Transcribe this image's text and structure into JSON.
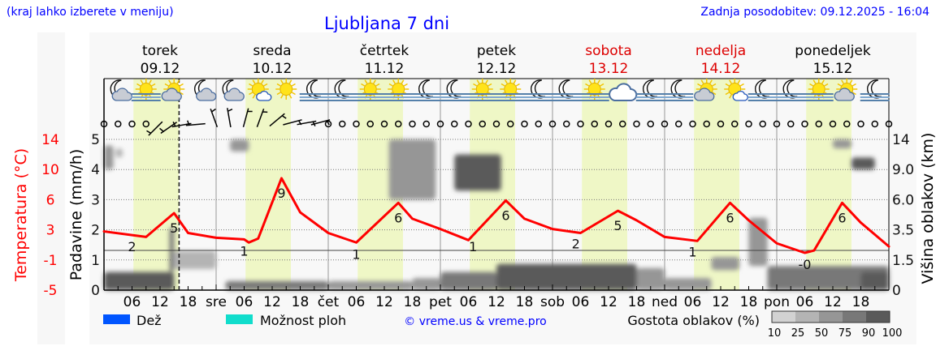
{
  "header": {
    "hint": "(kraj lahko izberete v meniju)",
    "title": "Ljubljana 7 dni",
    "updated": "Zadnja posodobitev: 09.12.2025 - 16:04"
  },
  "days": [
    {
      "name": "torek",
      "date": "09.12",
      "abbr": "",
      "weekend": false
    },
    {
      "name": "sreda",
      "date": "10.12",
      "abbr": "sre",
      "weekend": false
    },
    {
      "name": "četrtek",
      "date": "11.12",
      "abbr": "čet",
      "weekend": false
    },
    {
      "name": "petek",
      "date": "12.12",
      "abbr": "pet",
      "weekend": false
    },
    {
      "name": "sobota",
      "date": "13.12",
      "abbr": "sob",
      "weekend": true
    },
    {
      "name": "nedelja",
      "date": "14.12",
      "abbr": "ned",
      "weekend": true
    },
    {
      "name": "ponedeljek",
      "date": "15.12",
      "abbr": "pon",
      "weekend": false
    }
  ],
  "legend": {
    "rain": "Dež",
    "showers": "Možnost ploh",
    "copyright": "© vreme.us & vreme.pro",
    "cloud_density": "Gostota oblakov (%)",
    "density_levels": [
      "10",
      "25",
      "50",
      "75",
      "90",
      "100"
    ]
  },
  "colors": {
    "temperature": "#ff0000",
    "rain": "#0055ff",
    "showers": "#11ddcc",
    "daylight": "#eff7c6",
    "title": "#0000ff",
    "weekend": "#dd0000",
    "density": [
      "#d2d2d2",
      "#b4b4b4",
      "#969696",
      "#787878",
      "#5a5a5a"
    ]
  },
  "chart_data": {
    "type": "meteogram",
    "x_unit": "hours from 09.12 00:00",
    "hour_tick_labels": [
      "06",
      "12",
      "18"
    ],
    "current_time_hour": 16.07,
    "daylight_hours": [
      6.3,
      16.0
    ],
    "axes": {
      "precip": {
        "label": "Padavine (mm/h)",
        "ticks": [
          "0",
          "1",
          "2",
          "3",
          "4",
          "5"
        ],
        "range": [
          0,
          5
        ]
      },
      "temperature": {
        "label": "Temperatura (°C)",
        "ticks": [
          "14",
          "10",
          "6",
          "3",
          "-1",
          "-5"
        ],
        "range": [
          -5,
          14
        ]
      },
      "cloud_height": {
        "label": "Višina oblakov (km)",
        "ticks": [
          "0",
          "1.5",
          "3.5",
          "6.0",
          "9.0",
          "14"
        ]
      }
    },
    "temperature": [
      [
        0,
        2.4
      ],
      [
        9,
        1.7
      ],
      [
        15,
        4.7
      ],
      [
        18,
        2.2
      ],
      [
        24,
        1.6
      ],
      [
        30,
        1.4
      ],
      [
        31,
        1.0
      ],
      [
        33,
        1.5
      ],
      [
        38,
        9.1
      ],
      [
        42,
        4.8
      ],
      [
        48,
        2.2
      ],
      [
        54,
        1.0
      ],
      [
        63,
        6.0
      ],
      [
        66,
        4.0
      ],
      [
        72,
        2.7
      ],
      [
        78,
        1.3
      ],
      [
        86,
        6.3
      ],
      [
        90,
        4.0
      ],
      [
        96,
        2.7
      ],
      [
        102,
        2.2
      ],
      [
        110,
        5.0
      ],
      [
        114,
        3.8
      ],
      [
        120,
        1.7
      ],
      [
        127,
        1.2
      ],
      [
        134,
        6.0
      ],
      [
        138,
        3.8
      ],
      [
        144,
        0.9
      ],
      [
        150,
        -0.3
      ],
      [
        152,
        0.0
      ],
      [
        158,
        6.0
      ],
      [
        162,
        3.5
      ],
      [
        168,
        0.5
      ]
    ],
    "temp_labels": [
      {
        "hour": 6,
        "text": "2",
        "kind": "min"
      },
      {
        "hour": 15,
        "text": "5",
        "kind": "max"
      },
      {
        "hour": 30,
        "text": "1",
        "kind": "min"
      },
      {
        "hour": 38,
        "text": "9",
        "kind": "max"
      },
      {
        "hour": 54,
        "text": "1",
        "kind": "min"
      },
      {
        "hour": 63,
        "text": "6",
        "kind": "max"
      },
      {
        "hour": 79,
        "text": "1",
        "kind": "min"
      },
      {
        "hour": 86,
        "text": "6",
        "kind": "max"
      },
      {
        "hour": 101,
        "text": "2",
        "kind": "min"
      },
      {
        "hour": 110,
        "text": "5",
        "kind": "max"
      },
      {
        "hour": 126,
        "text": "1",
        "kind": "min"
      },
      {
        "hour": 134,
        "text": "6",
        "kind": "max"
      },
      {
        "hour": 150,
        "text": "-0",
        "kind": "min"
      },
      {
        "hour": 158,
        "text": "6",
        "kind": "max"
      }
    ],
    "precipitation": [],
    "clouds": [
      {
        "from": 0,
        "to": 15,
        "base_km": 0,
        "top_km": 0.9,
        "density": 90
      },
      {
        "from": 0,
        "to": 2,
        "base_km": 9,
        "top_km": 13,
        "density": 50
      },
      {
        "from": 2.5,
        "to": 4,
        "base_km": 11,
        "top_km": 12.5,
        "density": 25
      },
      {
        "from": 14,
        "to": 15,
        "base_km": 0.9,
        "top_km": 3.7,
        "density": 75
      },
      {
        "from": 15,
        "to": 24,
        "base_km": 1.05,
        "top_km": 2.1,
        "density": 25
      },
      {
        "from": 27,
        "to": 31,
        "base_km": 12,
        "top_km": 14,
        "density": 50
      },
      {
        "from": 26,
        "to": 48,
        "base_km": 0,
        "top_km": 0.45,
        "density": 75
      },
      {
        "from": 48,
        "to": 66,
        "base_km": 0,
        "top_km": 0.45,
        "density": 50
      },
      {
        "from": 61,
        "to": 71,
        "base_km": 6,
        "top_km": 14,
        "density": 50
      },
      {
        "from": 66,
        "to": 72,
        "base_km": 0,
        "top_km": 0.6,
        "density": 50
      },
      {
        "from": 75,
        "to": 85,
        "base_km": 6.9,
        "top_km": 11.5,
        "density": 90
      },
      {
        "from": 72,
        "to": 84,
        "base_km": 0,
        "top_km": 0.9,
        "density": 75
      },
      {
        "from": 84,
        "to": 114,
        "base_km": 0,
        "top_km": 1.3,
        "density": 90
      },
      {
        "from": 114,
        "to": 120,
        "base_km": 0,
        "top_km": 1.1,
        "density": 50
      },
      {
        "from": 120,
        "to": 130,
        "base_km": 0,
        "top_km": 0.6,
        "density": 50
      },
      {
        "from": 130,
        "to": 136,
        "base_km": 1.0,
        "top_km": 1.7,
        "density": 50
      },
      {
        "from": 138,
        "to": 142,
        "base_km": 1.2,
        "top_km": 4.5,
        "density": 50
      },
      {
        "from": 142,
        "to": 168,
        "base_km": 0,
        "top_km": 1.2,
        "density": 75
      },
      {
        "from": 162,
        "to": 168,
        "base_km": 0,
        "top_km": 0.9,
        "density": 90
      },
      {
        "from": 156,
        "to": 160,
        "base_km": 12.5,
        "top_km": 14,
        "density": 50
      },
      {
        "from": 160,
        "to": 165,
        "base_km": 9,
        "top_km": 11,
        "density": 90
      }
    ],
    "weather_icons": [
      "moon-cloud",
      "sun-fog",
      "sun-cloud",
      "moon-cloud",
      "moon-cloud",
      "sun-smallcloud",
      "sun",
      "moon-fog",
      "moon-fog",
      "sun-fog",
      "sun-fog",
      "moon-fog",
      "moon-fog",
      "sun-fog",
      "sun-fog",
      "moon-fog",
      "moon-fog",
      "sun-fog",
      "cloud",
      "moon-fog",
      "moon-fog",
      "sun-cloud",
      "sun-smallcloud",
      "moon-fog",
      "moon-fog",
      "sun-fog",
      "sun-cloud",
      "moon-fog"
    ],
    "wind_direction_deg": [
      null,
      null,
      null,
      null,
      225,
      235,
      260,
      265,
      340,
      350,
      15,
      20,
      50,
      75,
      80,
      75,
      null,
      null,
      null,
      null,
      null,
      null,
      null,
      null,
      null,
      null,
      null,
      null,
      null,
      null,
      null,
      null,
      null,
      null,
      null,
      null,
      null,
      null,
      null,
      null,
      null,
      null,
      null,
      null,
      null,
      null,
      null,
      null,
      null,
      null,
      null,
      null,
      null,
      null,
      null,
      null,
      null
    ]
  }
}
